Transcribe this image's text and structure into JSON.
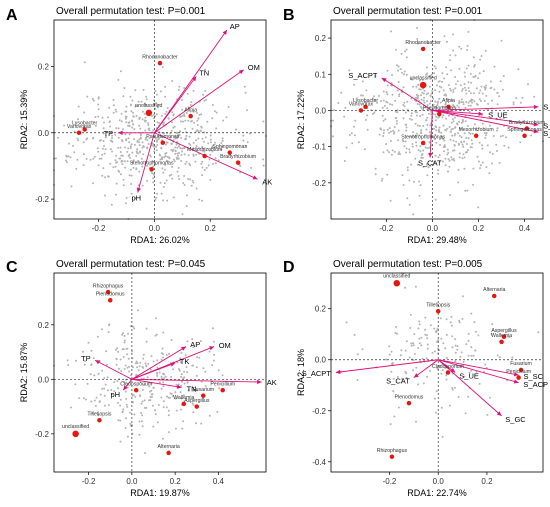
{
  "chart_data": [
    {
      "panel": "A",
      "type": "scatter",
      "title": "Overall permutation test: P=0.001",
      "xlabel": "RDA1: 26.02%",
      "ylabel": "RDA2: 15.39%",
      "xlim": [
        -0.36,
        0.4
      ],
      "ylim": [
        -0.26,
        0.34
      ],
      "xticks": [
        -0.2,
        0.0,
        0.2
      ],
      "yticks": [
        -0.2,
        0.0,
        0.2
      ],
      "tick_labels_x": [
        "-0.2",
        "0.0",
        "0.2"
      ],
      "tick_labels_y": [
        "-0.2",
        "0.0",
        "0.2"
      ],
      "seed": 11,
      "cloud_center": [
        0.0,
        -0.02
      ],
      "cloud_spread": [
        0.14,
        0.08
      ],
      "cloud_n": 600,
      "vectors": [
        {
          "label": "AP",
          "x": 0.26,
          "y": 0.31
        },
        {
          "label": "OM",
          "x": 0.32,
          "y": 0.19
        },
        {
          "label": "TN",
          "x": 0.15,
          "y": 0.17
        },
        {
          "label": "TP",
          "x": -0.13,
          "y": 0.0
        },
        {
          "label": "pH",
          "x": -0.06,
          "y": -0.18
        },
        {
          "label": "AK",
          "x": 0.37,
          "y": -0.14
        }
      ],
      "taxa": [
        {
          "label": "unclassified",
          "x": -0.02,
          "y": 0.06,
          "size": 5.5
        },
        {
          "label": "Rhodanobacter",
          "x": 0.02,
          "y": 0.21,
          "size": 3.5
        },
        {
          "label": "Afipia",
          "x": 0.13,
          "y": 0.05,
          "size": 3.5
        },
        {
          "label": "Lysobacter",
          "x": -0.25,
          "y": 0.01,
          "size": 3.5
        },
        {
          "label": "Variovorax",
          "x": -0.27,
          "y": 0.0,
          "size": 3.5
        },
        {
          "label": "Pseudomonas",
          "x": 0.03,
          "y": -0.03,
          "size": 3.5
        },
        {
          "label": "Mesorhizobium",
          "x": 0.18,
          "y": -0.07,
          "size": 3.5
        },
        {
          "label": "Sphingomonas",
          "x": 0.27,
          "y": -0.06,
          "size": 3.5
        },
        {
          "label": "Stenotrophomonas",
          "x": -0.01,
          "y": -0.11,
          "size": 3.5
        },
        {
          "label": "Bradyrhizobium",
          "x": 0.3,
          "y": -0.09,
          "size": 3.5
        }
      ]
    },
    {
      "panel": "B",
      "type": "scatter",
      "title": "Overall permutation test: P=0.001",
      "xlabel": "RDA1: 29.48%",
      "ylabel": "RDA2: 17.22%",
      "xlim": [
        -0.44,
        0.48
      ],
      "ylim": [
        -0.3,
        0.25
      ],
      "xticks": [
        -0.2,
        0.0,
        0.2,
        0.4
      ],
      "yticks": [
        -0.2,
        -0.1,
        0.0,
        0.1,
        0.2
      ],
      "tick_labels_x": [
        "-0.2",
        "0.0",
        "0.2",
        "0.4"
      ],
      "tick_labels_y": [
        "-0.2",
        "-0.1",
        "0.0",
        "0.1",
        "0.2"
      ],
      "seed": 23,
      "cloud_center": [
        0.0,
        -0.02
      ],
      "cloud_spread": [
        0.17,
        0.09
      ],
      "cloud_n": 650,
      "vectors": [
        {
          "label": "S_ACPT",
          "x": -0.22,
          "y": 0.09
        },
        {
          "label": "S_GC",
          "x": 0.46,
          "y": 0.01
        },
        {
          "label": "S_UE",
          "x": 0.22,
          "y": -0.01
        },
        {
          "label": "S_SC",
          "x": 0.46,
          "y": -0.04
        },
        {
          "label": "S_ACP",
          "x": 0.46,
          "y": -0.06
        },
        {
          "label": "S_CAT",
          "x": -0.01,
          "y": -0.13
        }
      ],
      "taxa": [
        {
          "label": "Rhodanobacter",
          "x": -0.04,
          "y": 0.17,
          "size": 3.5
        },
        {
          "label": "unclassified",
          "x": -0.04,
          "y": 0.07,
          "size": 5.5
        },
        {
          "label": "Lysobacter",
          "x": -0.29,
          "y": 0.01,
          "size": 3.5
        },
        {
          "label": "Variovorax",
          "x": -0.31,
          "y": -0.0,
          "size": 3.5
        },
        {
          "label": "Afipia",
          "x": 0.07,
          "y": 0.01,
          "size": 3.5
        },
        {
          "label": "Pseudomonas",
          "x": 0.03,
          "y": -0.01,
          "size": 3.5
        },
        {
          "label": "Stenotrophomonas",
          "x": -0.04,
          "y": -0.09,
          "size": 3.5
        },
        {
          "label": "Mesorhizobium",
          "x": 0.19,
          "y": -0.07,
          "size": 3.5
        },
        {
          "label": "Bradyrhizobium",
          "x": 0.41,
          "y": -0.05,
          "size": 3.5
        },
        {
          "label": "Sphingomonas",
          "x": 0.4,
          "y": -0.07,
          "size": 3.5
        }
      ]
    },
    {
      "panel": "C",
      "type": "scatter",
      "title": "Overall permutation test: P=0.045",
      "xlabel": "RDA1: 19.87%",
      "ylabel": "RDA2: 15.87%",
      "xlim": [
        -0.36,
        0.62
      ],
      "ylim": [
        -0.34,
        0.39
      ],
      "xticks": [
        -0.2,
        0.0,
        0.2,
        0.4
      ],
      "yticks": [
        -0.2,
        0.0,
        0.2
      ],
      "tick_labels_x": [
        "-0.2",
        "0.0",
        "0.2",
        "0.4"
      ],
      "tick_labels_y": [
        "-0.2",
        "0.0",
        "0.2"
      ],
      "seed": 37,
      "cloud_center": [
        0.06,
        0.01
      ],
      "cloud_spread": [
        0.15,
        0.1
      ],
      "cloud_n": 300,
      "vectors": [
        {
          "label": "AP",
          "x": 0.25,
          "y": 0.12
        },
        {
          "label": "OM",
          "x": 0.38,
          "y": 0.12
        },
        {
          "label": "TK",
          "x": 0.2,
          "y": 0.06
        },
        {
          "label": "TP",
          "x": -0.17,
          "y": 0.07
        },
        {
          "label": "pH",
          "x": -0.04,
          "y": -0.04
        },
        {
          "label": "TN",
          "x": 0.23,
          "y": -0.03
        },
        {
          "label": "AK",
          "x": 0.6,
          "y": -0.01
        }
      ],
      "taxa": [
        {
          "label": "Rhizophagus",
          "x": -0.11,
          "y": 0.32,
          "size": 3.5
        },
        {
          "label": "Plenodomus",
          "x": -0.1,
          "y": 0.29,
          "size": 3.5
        },
        {
          "label": "Cladosporium",
          "x": 0.02,
          "y": -0.04,
          "size": 3.5
        },
        {
          "label": "Penicillium",
          "x": 0.42,
          "y": -0.04,
          "size": 3.5
        },
        {
          "label": "Fusarium",
          "x": 0.33,
          "y": -0.06,
          "size": 3.5
        },
        {
          "label": "Wallemia",
          "x": 0.24,
          "y": -0.09,
          "size": 3.5
        },
        {
          "label": "Aspergillus",
          "x": 0.3,
          "y": -0.1,
          "size": 3.5
        },
        {
          "label": "Tilletiopsis",
          "x": -0.15,
          "y": -0.15,
          "size": 3.5
        },
        {
          "label": "unclassified",
          "x": -0.26,
          "y": -0.2,
          "size": 5.5
        },
        {
          "label": "Alternaria",
          "x": 0.17,
          "y": -0.27,
          "size": 3.5
        }
      ]
    },
    {
      "panel": "D",
      "type": "scatter",
      "title": "Overall permutation test: P=0.005",
      "xlabel": "RDA1: 22.74%",
      "ylabel": "RDA2: 18%",
      "xlim": [
        -0.44,
        0.43
      ],
      "ylim": [
        -0.44,
        0.34
      ],
      "xticks": [
        -0.2,
        0.0,
        0.2
      ],
      "yticks": [
        -0.4,
        -0.2,
        0.0,
        0.2
      ],
      "tick_labels_x": [
        "-0.2",
        "0.0",
        "0.2"
      ],
      "tick_labels_y": [
        "-0.4",
        "-0.2",
        "0.0",
        "0.2"
      ],
      "seed": 53,
      "cloud_center": [
        0.0,
        0.01
      ],
      "cloud_spread": [
        0.15,
        0.11
      ],
      "cloud_n": 170,
      "vectors": [
        {
          "label": "S_ACPT",
          "x": -0.42,
          "y": -0.05
        },
        {
          "label": "S_CAT",
          "x": -0.1,
          "y": -0.07
        },
        {
          "label": "S_UE",
          "x": 0.07,
          "y": -0.05
        },
        {
          "label": "S_SC",
          "x": 0.33,
          "y": -0.06
        },
        {
          "label": "S_ACP",
          "x": 0.33,
          "y": -0.09
        },
        {
          "label": "S_GC",
          "x": 0.26,
          "y": -0.22
        }
      ],
      "taxa": [
        {
          "label": "unclassified",
          "x": -0.17,
          "y": 0.3,
          "size": 5.5
        },
        {
          "label": "Tilletiopsis",
          "x": 0.0,
          "y": 0.19,
          "size": 3.5
        },
        {
          "label": "Alternaria",
          "x": 0.23,
          "y": 0.25,
          "size": 3.5
        },
        {
          "label": "Aspergillus",
          "x": 0.27,
          "y": 0.09,
          "size": 3.5
        },
        {
          "label": "Wallemia",
          "x": 0.26,
          "y": 0.07,
          "size": 3.5
        },
        {
          "label": "Fusarium",
          "x": 0.34,
          "y": -0.04,
          "size": 3.5
        },
        {
          "label": "Penicillium",
          "x": 0.33,
          "y": -0.07,
          "size": 3.5
        },
        {
          "label": "Cladosporium",
          "x": 0.04,
          "y": -0.05,
          "size": 3.5
        },
        {
          "label": "Plenodomus",
          "x": -0.12,
          "y": -0.17,
          "size": 3.5
        },
        {
          "label": "Rhizophagus",
          "x": -0.19,
          "y": -0.38,
          "size": 3.5
        }
      ]
    }
  ]
}
